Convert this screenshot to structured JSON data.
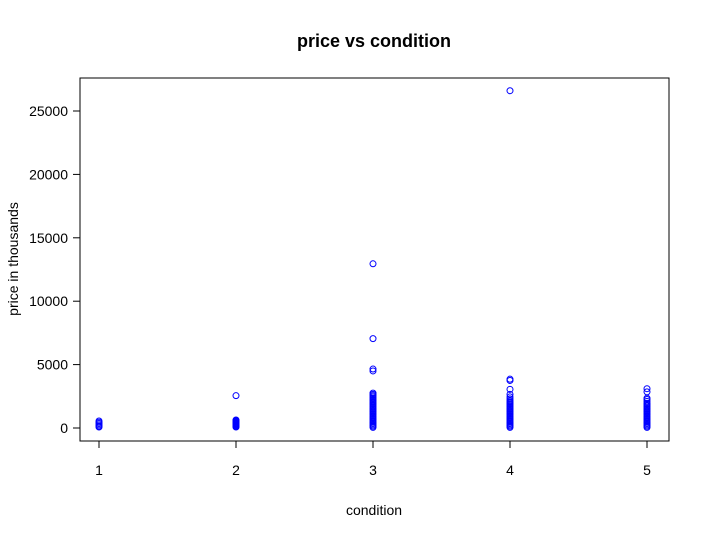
{
  "chart_data": {
    "type": "scatter",
    "title": "price vs condition",
    "xlabel": "condition",
    "ylabel": "price in thousands",
    "xlim": [
      1,
      5
    ],
    "ylim": [
      0,
      26000
    ],
    "x_ticks": [
      1,
      2,
      3,
      4,
      5
    ],
    "y_ticks": [
      0,
      5000,
      10000,
      15000,
      20000,
      25000
    ],
    "grid": false,
    "legend": "none",
    "point_color": "#0000ff",
    "points": [
      {
        "x": 1,
        "y": 80
      },
      {
        "x": 1,
        "y": 150
      },
      {
        "x": 1,
        "y": 250
      },
      {
        "x": 1,
        "y": 350
      },
      {
        "x": 1,
        "y": 450
      },
      {
        "x": 1,
        "y": 550
      },
      {
        "x": 2,
        "y": 80
      },
      {
        "x": 2,
        "y": 130
      },
      {
        "x": 2,
        "y": 180
      },
      {
        "x": 2,
        "y": 230
      },
      {
        "x": 2,
        "y": 280
      },
      {
        "x": 2,
        "y": 330
      },
      {
        "x": 2,
        "y": 380
      },
      {
        "x": 2,
        "y": 430
      },
      {
        "x": 2,
        "y": 480
      },
      {
        "x": 2,
        "y": 530
      },
      {
        "x": 2,
        "y": 580
      },
      {
        "x": 2,
        "y": 630
      },
      {
        "x": 2,
        "y": 2550
      },
      {
        "x": 3,
        "y": 50
      },
      {
        "x": 3,
        "y": 150
      },
      {
        "x": 3,
        "y": 250
      },
      {
        "x": 3,
        "y": 350
      },
      {
        "x": 3,
        "y": 450
      },
      {
        "x": 3,
        "y": 550
      },
      {
        "x": 3,
        "y": 650
      },
      {
        "x": 3,
        "y": 750
      },
      {
        "x": 3,
        "y": 850
      },
      {
        "x": 3,
        "y": 950
      },
      {
        "x": 3,
        "y": 1050
      },
      {
        "x": 3,
        "y": 1150
      },
      {
        "x": 3,
        "y": 1250
      },
      {
        "x": 3,
        "y": 1350
      },
      {
        "x": 3,
        "y": 1450
      },
      {
        "x": 3,
        "y": 1550
      },
      {
        "x": 3,
        "y": 1650
      },
      {
        "x": 3,
        "y": 1750
      },
      {
        "x": 3,
        "y": 1850
      },
      {
        "x": 3,
        "y": 1950
      },
      {
        "x": 3,
        "y": 2050
      },
      {
        "x": 3,
        "y": 2150
      },
      {
        "x": 3,
        "y": 2250
      },
      {
        "x": 3,
        "y": 2350
      },
      {
        "x": 3,
        "y": 2450
      },
      {
        "x": 3,
        "y": 2550
      },
      {
        "x": 3,
        "y": 2650
      },
      {
        "x": 3,
        "y": 2750
      },
      {
        "x": 3,
        "y": 4500
      },
      {
        "x": 3,
        "y": 4650
      },
      {
        "x": 3,
        "y": 7050
      },
      {
        "x": 3,
        "y": 12950
      },
      {
        "x": 4,
        "y": 50
      },
      {
        "x": 4,
        "y": 150
      },
      {
        "x": 4,
        "y": 250
      },
      {
        "x": 4,
        "y": 350
      },
      {
        "x": 4,
        "y": 450
      },
      {
        "x": 4,
        "y": 550
      },
      {
        "x": 4,
        "y": 650
      },
      {
        "x": 4,
        "y": 750
      },
      {
        "x": 4,
        "y": 850
      },
      {
        "x": 4,
        "y": 950
      },
      {
        "x": 4,
        "y": 1050
      },
      {
        "x": 4,
        "y": 1150
      },
      {
        "x": 4,
        "y": 1250
      },
      {
        "x": 4,
        "y": 1350
      },
      {
        "x": 4,
        "y": 1450
      },
      {
        "x": 4,
        "y": 1550
      },
      {
        "x": 4,
        "y": 1650
      },
      {
        "x": 4,
        "y": 1750
      },
      {
        "x": 4,
        "y": 1850
      },
      {
        "x": 4,
        "y": 1950
      },
      {
        "x": 4,
        "y": 2050
      },
      {
        "x": 4,
        "y": 2150
      },
      {
        "x": 4,
        "y": 2300
      },
      {
        "x": 4,
        "y": 2450
      },
      {
        "x": 4,
        "y": 2650
      },
      {
        "x": 4,
        "y": 3050
      },
      {
        "x": 4,
        "y": 3750
      },
      {
        "x": 4,
        "y": 3850
      },
      {
        "x": 4,
        "y": 26600
      },
      {
        "x": 5,
        "y": 50
      },
      {
        "x": 5,
        "y": 150
      },
      {
        "x": 5,
        "y": 250
      },
      {
        "x": 5,
        "y": 350
      },
      {
        "x": 5,
        "y": 450
      },
      {
        "x": 5,
        "y": 550
      },
      {
        "x": 5,
        "y": 650
      },
      {
        "x": 5,
        "y": 750
      },
      {
        "x": 5,
        "y": 850
      },
      {
        "x": 5,
        "y": 950
      },
      {
        "x": 5,
        "y": 1050
      },
      {
        "x": 5,
        "y": 1150
      },
      {
        "x": 5,
        "y": 1250
      },
      {
        "x": 5,
        "y": 1350
      },
      {
        "x": 5,
        "y": 1450
      },
      {
        "x": 5,
        "y": 1550
      },
      {
        "x": 5,
        "y": 1650
      },
      {
        "x": 5,
        "y": 1750
      },
      {
        "x": 5,
        "y": 1850
      },
      {
        "x": 5,
        "y": 1950
      },
      {
        "x": 5,
        "y": 2100
      },
      {
        "x": 5,
        "y": 2250
      },
      {
        "x": 5,
        "y": 2350
      },
      {
        "x": 5,
        "y": 2850
      },
      {
        "x": 5,
        "y": 3100
      }
    ]
  }
}
